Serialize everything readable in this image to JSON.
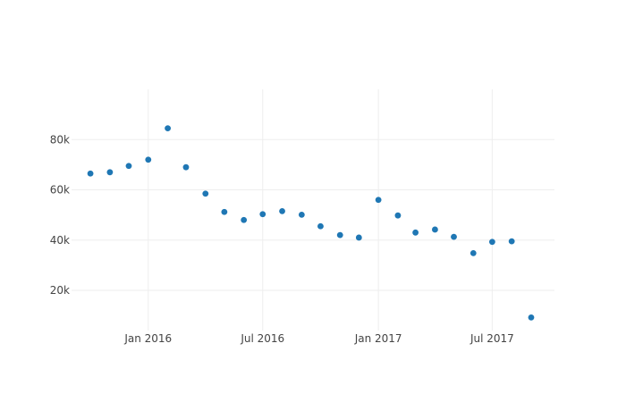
{
  "chart_data": {
    "type": "scatter",
    "title": "",
    "xlabel": "",
    "ylabel": "",
    "grid": true,
    "legend": "none",
    "marker_color": "#1f77b4",
    "xlim": [
      "2015-09-01",
      "2017-10-08"
    ],
    "ylim": [
      4000,
      100000
    ],
    "x_ticks": [
      {
        "value": "2016-01-01",
        "label": "Jan 2016"
      },
      {
        "value": "2016-07-01",
        "label": "Jul 2016"
      },
      {
        "value": "2017-01-01",
        "label": "Jan 2017"
      },
      {
        "value": "2017-07-01",
        "label": "Jul 2017"
      }
    ],
    "y_ticks": [
      {
        "value": 20000,
        "label": "20k"
      },
      {
        "value": 40000,
        "label": "40k"
      },
      {
        "value": 60000,
        "label": "60k"
      },
      {
        "value": 80000,
        "label": "80k"
      }
    ],
    "series": [
      {
        "x": [
          "2015-10-01",
          "2015-11-01",
          "2015-12-01",
          "2016-01-01",
          "2016-02-01",
          "2016-03-01",
          "2016-04-01",
          "2016-05-01",
          "2016-06-01",
          "2016-07-01",
          "2016-08-01",
          "2016-09-01",
          "2016-10-01",
          "2016-11-01",
          "2016-12-01",
          "2017-01-01",
          "2017-02-01",
          "2017-03-01",
          "2017-04-01",
          "2017-05-01",
          "2017-06-01",
          "2017-07-01",
          "2017-08-01",
          "2017-09-01"
        ],
        "values": [
          66500,
          67000,
          69500,
          72000,
          84500,
          69000,
          58500,
          51200,
          48000,
          50300,
          51500,
          50100,
          45500,
          42000,
          41000,
          56000,
          49800,
          43000,
          44200,
          41300,
          34800,
          39300,
          39500,
          9200
        ]
      }
    ]
  }
}
